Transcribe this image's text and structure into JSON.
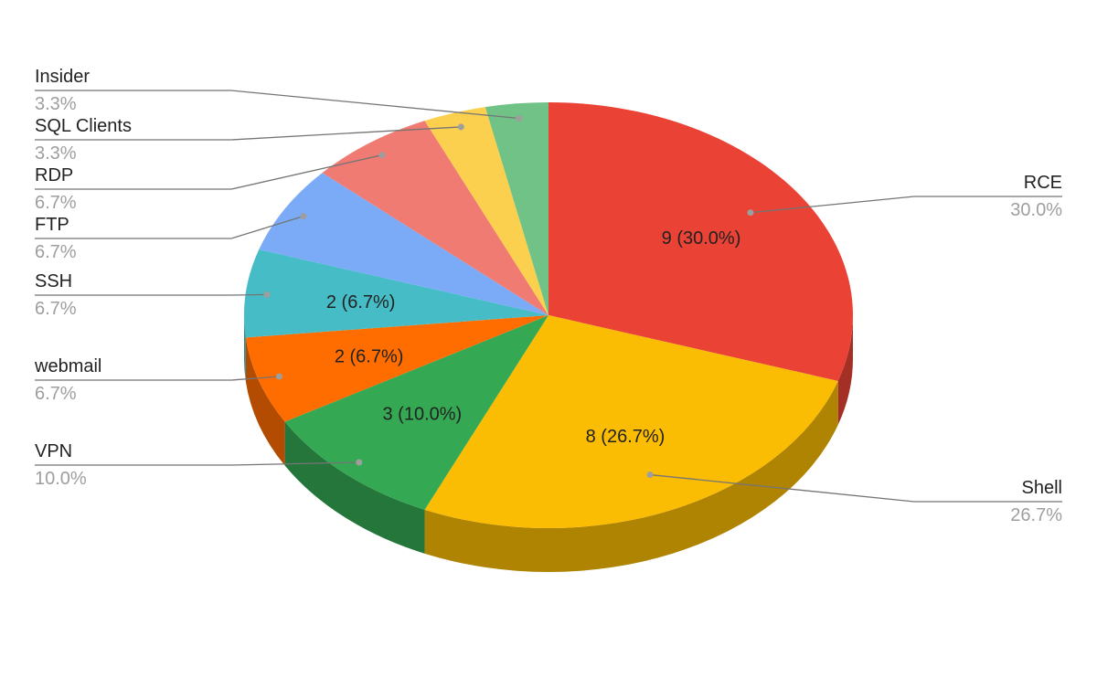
{
  "chart_data": {
    "type": "pie3d",
    "categories": [
      "RCE",
      "Shell",
      "VPN",
      "webmail",
      "SSH",
      "FTP",
      "RDP",
      "SQL Clients",
      "Insider"
    ],
    "values": [
      9,
      8,
      3,
      2,
      2,
      2,
      2,
      1,
      1
    ],
    "value_labels": [
      "9 (30.0%)",
      "8 (26.7%)",
      "3 (10.0%)",
      "2 (6.7%)",
      "2 (6.7%)",
      null,
      null,
      null,
      null
    ],
    "percent_labels": [
      "30.0%",
      "26.7%",
      "10.0%",
      "6.7%",
      "6.7%",
      "6.7%",
      "6.7%",
      "3.3%",
      "3.3%"
    ],
    "colors": [
      "#ea4335",
      "#fbbc04",
      "#34a853",
      "#ff6d01",
      "#46bdc6",
      "#7baaf7",
      "#f07b72",
      "#fcd04f",
      "#71c287"
    ]
  }
}
